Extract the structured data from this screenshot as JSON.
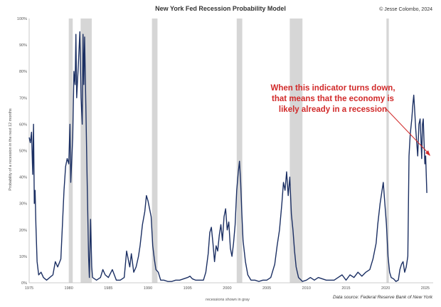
{
  "chart_data": {
    "type": "line",
    "title": "New York Fed Recession Probability Model",
    "credit": "© Jesse Colombo, 2024",
    "ylabel": "Probability of a recession in the next 12 months",
    "xlabel": "recessions shown in gray",
    "source": "Data source: Federal Reserve Bank of New York",
    "annotation": [
      "When this indicator turns down,",
      "that means that the economy is",
      "likely already in a recession"
    ],
    "xlim": [
      1975,
      2026
    ],
    "ylim": [
      0,
      100
    ],
    "x_ticks": [
      {
        "v": 1975,
        "label": "1975"
      },
      {
        "v": 1980,
        "label": "1980"
      },
      {
        "v": 1985,
        "label": "1985"
      },
      {
        "v": 1990,
        "label": "1990"
      },
      {
        "v": 1995,
        "label": "1995"
      },
      {
        "v": 2000,
        "label": "2000"
      },
      {
        "v": 2005,
        "label": "2005"
      },
      {
        "v": 2010,
        "label": "2010"
      },
      {
        "v": 2015,
        "label": "2015"
      },
      {
        "v": 2020,
        "label": "2020"
      },
      {
        "v": 2025,
        "label": "2025"
      }
    ],
    "y_ticks": [
      {
        "v": 0,
        "label": "0%"
      },
      {
        "v": 10,
        "label": "10%"
      },
      {
        "v": 20,
        "label": "20%"
      },
      {
        "v": 30,
        "label": "30%"
      },
      {
        "v": 40,
        "label": "40%"
      },
      {
        "v": 50,
        "label": "50%"
      },
      {
        "v": 60,
        "label": "60%"
      },
      {
        "v": 70,
        "label": "70%"
      },
      {
        "v": 80,
        "label": "80%"
      },
      {
        "v": 90,
        "label": "90%"
      },
      {
        "v": 100,
        "label": "100%"
      }
    ],
    "recessions": [
      [
        1980.0,
        1980.5
      ],
      [
        1981.5,
        1982.9
      ],
      [
        1990.5,
        1991.2
      ],
      [
        2001.2,
        2001.9
      ],
      [
        2007.9,
        2009.5
      ],
      [
        2020.1,
        2020.4
      ]
    ],
    "series": [
      {
        "color": "#1b2f63",
        "points": [
          [
            1975.0,
            55
          ],
          [
            1975.15,
            53
          ],
          [
            1975.3,
            57
          ],
          [
            1975.45,
            41
          ],
          [
            1975.55,
            60
          ],
          [
            1975.65,
            30
          ],
          [
            1975.75,
            35
          ],
          [
            1975.85,
            22
          ],
          [
            1976.0,
            8
          ],
          [
            1976.2,
            3
          ],
          [
            1976.5,
            4
          ],
          [
            1976.8,
            2
          ],
          [
            1977.2,
            1
          ],
          [
            1977.6,
            2
          ],
          [
            1978.0,
            3
          ],
          [
            1978.3,
            8
          ],
          [
            1978.6,
            6
          ],
          [
            1979.0,
            9
          ],
          [
            1979.2,
            22
          ],
          [
            1979.4,
            35
          ],
          [
            1979.6,
            44
          ],
          [
            1979.8,
            47
          ],
          [
            1980.0,
            45
          ],
          [
            1980.15,
            60
          ],
          [
            1980.25,
            38
          ],
          [
            1980.5,
            55
          ],
          [
            1980.65,
            80
          ],
          [
            1980.8,
            75
          ],
          [
            1980.9,
            94
          ],
          [
            1981.0,
            70
          ],
          [
            1981.2,
            82
          ],
          [
            1981.4,
            95
          ],
          [
            1981.55,
            70
          ],
          [
            1981.7,
            60
          ],
          [
            1981.8,
            94
          ],
          [
            1981.9,
            75
          ],
          [
            1982.0,
            93
          ],
          [
            1982.15,
            68
          ],
          [
            1982.3,
            42
          ],
          [
            1982.5,
            10
          ],
          [
            1982.6,
            2
          ],
          [
            1982.75,
            24
          ],
          [
            1982.9,
            6
          ],
          [
            1983.0,
            2
          ],
          [
            1983.5,
            1
          ],
          [
            1984.0,
            2
          ],
          [
            1984.3,
            5
          ],
          [
            1984.6,
            3
          ],
          [
            1985.0,
            2
          ],
          [
            1985.5,
            5
          ],
          [
            1986.0,
            1
          ],
          [
            1986.5,
            1
          ],
          [
            1987.0,
            2
          ],
          [
            1987.3,
            12
          ],
          [
            1987.5,
            9
          ],
          [
            1987.7,
            6
          ],
          [
            1987.9,
            11
          ],
          [
            1988.2,
            4
          ],
          [
            1988.5,
            6
          ],
          [
            1988.8,
            10
          ],
          [
            1989.0,
            14
          ],
          [
            1989.3,
            22
          ],
          [
            1989.6,
            27
          ],
          [
            1989.8,
            33
          ],
          [
            1990.0,
            31
          ],
          [
            1990.2,
            28
          ],
          [
            1990.4,
            25
          ],
          [
            1990.6,
            14
          ],
          [
            1990.8,
            9
          ],
          [
            1991.0,
            5
          ],
          [
            1991.3,
            4
          ],
          [
            1991.6,
            1
          ],
          [
            1992.0,
            1
          ],
          [
            1992.5,
            0.5
          ],
          [
            1993.0,
            0.5
          ],
          [
            1993.5,
            1
          ],
          [
            1994.0,
            1
          ],
          [
            1994.5,
            1.5
          ],
          [
            1995.0,
            2
          ],
          [
            1995.3,
            2.5
          ],
          [
            1995.6,
            1.5
          ],
          [
            1996.0,
            1
          ],
          [
            1996.5,
            1
          ],
          [
            1997.0,
            1
          ],
          [
            1997.3,
            4
          ],
          [
            1997.6,
            11
          ],
          [
            1997.8,
            19
          ],
          [
            1998.0,
            21
          ],
          [
            1998.2,
            15
          ],
          [
            1998.4,
            8
          ],
          [
            1998.6,
            14
          ],
          [
            1998.8,
            12
          ],
          [
            1999.0,
            18
          ],
          [
            1999.2,
            22
          ],
          [
            1999.4,
            16
          ],
          [
            1999.6,
            25
          ],
          [
            1999.8,
            28
          ],
          [
            2000.0,
            20
          ],
          [
            2000.2,
            23
          ],
          [
            2000.4,
            13
          ],
          [
            2000.6,
            10
          ],
          [
            2000.8,
            15
          ],
          [
            2001.0,
            22
          ],
          [
            2001.2,
            35
          ],
          [
            2001.4,
            42
          ],
          [
            2001.55,
            46
          ],
          [
            2001.7,
            38
          ],
          [
            2001.85,
            26
          ],
          [
            2002.0,
            16
          ],
          [
            2002.3,
            8
          ],
          [
            2002.6,
            3
          ],
          [
            2003.0,
            1
          ],
          [
            2003.5,
            1
          ],
          [
            2004.0,
            0.5
          ],
          [
            2004.5,
            1
          ],
          [
            2005.0,
            1
          ],
          [
            2005.5,
            2
          ],
          [
            2006.0,
            7
          ],
          [
            2006.3,
            14
          ],
          [
            2006.6,
            20
          ],
          [
            2006.9,
            30
          ],
          [
            2007.1,
            38
          ],
          [
            2007.3,
            35
          ],
          [
            2007.5,
            42
          ],
          [
            2007.7,
            33
          ],
          [
            2007.9,
            40
          ],
          [
            2008.1,
            26
          ],
          [
            2008.3,
            20
          ],
          [
            2008.5,
            12
          ],
          [
            2008.7,
            6
          ],
          [
            2009.0,
            2
          ],
          [
            2009.5,
            0.5
          ],
          [
            2010.0,
            1
          ],
          [
            2010.5,
            2
          ],
          [
            2011.0,
            1
          ],
          [
            2011.5,
            2
          ],
          [
            2012.0,
            1.5
          ],
          [
            2012.5,
            1
          ],
          [
            2013.0,
            1
          ],
          [
            2013.5,
            1
          ],
          [
            2014.0,
            2
          ],
          [
            2014.5,
            3
          ],
          [
            2015.0,
            1
          ],
          [
            2015.5,
            3
          ],
          [
            2016.0,
            2
          ],
          [
            2016.5,
            4
          ],
          [
            2017.0,
            2.5
          ],
          [
            2017.5,
            4
          ],
          [
            2018.0,
            5
          ],
          [
            2018.4,
            9
          ],
          [
            2018.8,
            15
          ],
          [
            2019.0,
            22
          ],
          [
            2019.3,
            30
          ],
          [
            2019.5,
            34
          ],
          [
            2019.7,
            38
          ],
          [
            2019.9,
            30
          ],
          [
            2020.1,
            22
          ],
          [
            2020.3,
            10
          ],
          [
            2020.5,
            4
          ],
          [
            2020.7,
            2
          ],
          [
            2021.0,
            1.5
          ],
          [
            2021.3,
            0.5
          ],
          [
            2021.6,
            1
          ],
          [
            2021.8,
            5
          ],
          [
            2022.0,
            7
          ],
          [
            2022.2,
            8
          ],
          [
            2022.4,
            4
          ],
          [
            2022.6,
            6
          ],
          [
            2022.8,
            10
          ],
          [
            2022.95,
            48
          ],
          [
            2023.1,
            56
          ],
          [
            2023.3,
            62
          ],
          [
            2023.45,
            68
          ],
          [
            2023.55,
            71
          ],
          [
            2023.65,
            66
          ],
          [
            2023.8,
            58
          ],
          [
            2023.95,
            52
          ],
          [
            2024.05,
            48
          ],
          [
            2024.2,
            60
          ],
          [
            2024.35,
            62
          ],
          [
            2024.45,
            55
          ],
          [
            2024.55,
            47
          ],
          [
            2024.65,
            60
          ],
          [
            2024.75,
            62
          ],
          [
            2024.85,
            53
          ],
          [
            2024.95,
            45
          ],
          [
            2025.05,
            48
          ],
          [
            2025.2,
            34
          ]
        ]
      }
    ]
  }
}
